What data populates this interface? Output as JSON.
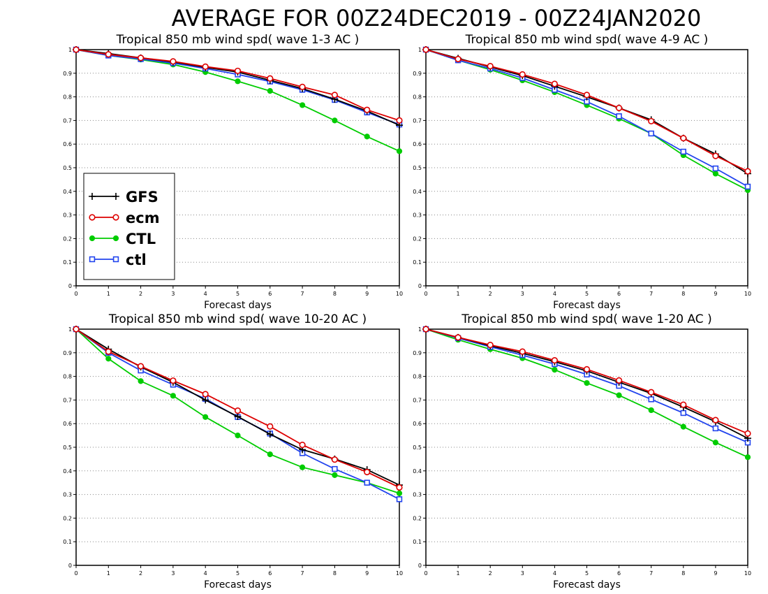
{
  "figure": {
    "title": "AVERAGE FOR 00Z24DEC2019 - 00Z24JAN2020"
  },
  "colors": {
    "GFS": "#000000",
    "ecm": "#dd0000",
    "CTL": "#00cc00",
    "ctl": "#2244ee",
    "grid": "#888888"
  },
  "legend": {
    "placement": "lower-left of first panel",
    "entries": [
      {
        "label": "GFS",
        "marker": "plus"
      },
      {
        "label": "ecm",
        "marker": "open-circle"
      },
      {
        "label": "CTL",
        "marker": "filled-circle"
      },
      {
        "label": "ctl",
        "marker": "open-square"
      }
    ]
  },
  "chart_data": [
    {
      "type": "line",
      "title": "Tropical 850 mb wind spd( wave 1-3 AC )",
      "xlabel": "Forecast days",
      "ylabel": "",
      "x": [
        0,
        1,
        2,
        3,
        4,
        5,
        6,
        7,
        8,
        9,
        10
      ],
      "xticks": [
        "0",
        "1",
        "2",
        "3",
        "4",
        "5",
        "6",
        "7",
        "8",
        "9",
        "10"
      ],
      "yticks": [
        "0",
        "0.1",
        "0.2",
        "0.3",
        "0.4",
        "0.5",
        "0.6",
        "0.7",
        "0.8",
        "0.9",
        "1"
      ],
      "xlim": [
        0,
        10
      ],
      "ylim": [
        0,
        1
      ],
      "grid": "horizontal dotted",
      "series": [
        {
          "name": "GFS",
          "values": [
            1.0,
            0.983,
            0.965,
            0.948,
            0.925,
            0.905,
            0.87,
            0.835,
            0.79,
            0.74,
            0.68
          ]
        },
        {
          "name": "ecm",
          "values": [
            1.0,
            0.98,
            0.965,
            0.95,
            0.928,
            0.91,
            0.878,
            0.842,
            0.808,
            0.745,
            0.7
          ]
        },
        {
          "name": "CTL",
          "values": [
            1.0,
            0.975,
            0.958,
            0.937,
            0.905,
            0.866,
            0.825,
            0.765,
            0.7,
            0.632,
            0.57
          ]
        },
        {
          "name": "ctl",
          "values": [
            1.0,
            0.975,
            0.96,
            0.943,
            0.92,
            0.895,
            0.865,
            0.83,
            0.787,
            0.734,
            0.683
          ]
        }
      ]
    },
    {
      "type": "line",
      "title": "Tropical 850 mb wind spd( wave 4-9 AC )",
      "xlabel": "Forecast days",
      "ylabel": "",
      "x": [
        0,
        1,
        2,
        3,
        4,
        5,
        6,
        7,
        8,
        9,
        10
      ],
      "xticks": [
        "0",
        "1",
        "2",
        "3",
        "4",
        "5",
        "6",
        "7",
        "8",
        "9",
        "10"
      ],
      "yticks": [
        "0",
        "0.1",
        "0.2",
        "0.3",
        "0.4",
        "0.5",
        "0.6",
        "0.7",
        "0.8",
        "0.9",
        "1"
      ],
      "xlim": [
        0,
        10
      ],
      "ylim": [
        0,
        1
      ],
      "grid": "horizontal dotted",
      "series": [
        {
          "name": "GFS",
          "values": [
            1.0,
            0.963,
            0.927,
            0.89,
            0.845,
            0.8,
            0.753,
            0.703,
            0.625,
            0.558,
            0.475
          ]
        },
        {
          "name": "ecm",
          "values": [
            1.0,
            0.96,
            0.93,
            0.895,
            0.855,
            0.808,
            0.753,
            0.697,
            0.625,
            0.55,
            0.485
          ]
        },
        {
          "name": "CTL",
          "values": [
            1.0,
            0.955,
            0.915,
            0.87,
            0.82,
            0.765,
            0.708,
            0.645,
            0.553,
            0.475,
            0.405
          ]
        },
        {
          "name": "ctl",
          "values": [
            1.0,
            0.955,
            0.92,
            0.88,
            0.83,
            0.78,
            0.718,
            0.645,
            0.568,
            0.497,
            0.42
          ]
        }
      ]
    },
    {
      "type": "line",
      "title": "Tropical 850 mb wind spd( wave 10-20 AC )",
      "xlabel": "Forecast days",
      "ylabel": "",
      "x": [
        0,
        1,
        2,
        3,
        4,
        5,
        6,
        7,
        8,
        9,
        10
      ],
      "xticks": [
        "0",
        "1",
        "2",
        "3",
        "4",
        "5",
        "6",
        "7",
        "8",
        "9",
        "10"
      ],
      "yticks": [
        "0",
        "0.1",
        "0.2",
        "0.3",
        "0.4",
        "0.5",
        "0.6",
        "0.7",
        "0.8",
        "0.9",
        "1"
      ],
      "xlim": [
        0,
        10
      ],
      "ylim": [
        0,
        1
      ],
      "grid": "horizontal dotted",
      "series": [
        {
          "name": "GFS",
          "values": [
            1.0,
            0.915,
            0.84,
            0.775,
            0.7,
            0.63,
            0.555,
            0.49,
            0.45,
            0.405,
            0.34
          ]
        },
        {
          "name": "ecm",
          "values": [
            1.0,
            0.905,
            0.843,
            0.782,
            0.725,
            0.655,
            0.588,
            0.51,
            0.448,
            0.395,
            0.33
          ]
        },
        {
          "name": "CTL",
          "values": [
            1.0,
            0.875,
            0.78,
            0.718,
            0.628,
            0.55,
            0.47,
            0.415,
            0.382,
            0.35,
            0.305
          ]
        },
        {
          "name": "ctl",
          "values": [
            1.0,
            0.9,
            0.825,
            0.765,
            0.705,
            0.628,
            0.558,
            0.475,
            0.408,
            0.35,
            0.28
          ]
        }
      ]
    },
    {
      "type": "line",
      "title": "Tropical 850 mb wind spd( wave 1-20 AC )",
      "xlabel": "Forecast days",
      "ylabel": "",
      "x": [
        0,
        1,
        2,
        3,
        4,
        5,
        6,
        7,
        8,
        9,
        10
      ],
      "xticks": [
        "0",
        "1",
        "2",
        "3",
        "4",
        "5",
        "6",
        "7",
        "8",
        "9",
        "10"
      ],
      "yticks": [
        "0",
        "0.1",
        "0.2",
        "0.3",
        "0.4",
        "0.5",
        "0.6",
        "0.7",
        "0.8",
        "0.9",
        "1"
      ],
      "xlim": [
        0,
        10
      ],
      "ylim": [
        0,
        1
      ],
      "grid": "horizontal dotted",
      "series": [
        {
          "name": "GFS",
          "values": [
            1.0,
            0.965,
            0.93,
            0.898,
            0.862,
            0.823,
            0.775,
            0.728,
            0.67,
            0.608,
            0.538
          ]
        },
        {
          "name": "ecm",
          "values": [
            1.0,
            0.965,
            0.933,
            0.905,
            0.868,
            0.83,
            0.783,
            0.733,
            0.68,
            0.615,
            0.558
          ]
        },
        {
          "name": "CTL",
          "values": [
            1.0,
            0.955,
            0.915,
            0.877,
            0.828,
            0.772,
            0.72,
            0.657,
            0.587,
            0.52,
            0.458
          ]
        },
        {
          "name": "ctl",
          "values": [
            1.0,
            0.962,
            0.925,
            0.89,
            0.852,
            0.808,
            0.76,
            0.703,
            0.645,
            0.58,
            0.52
          ]
        }
      ]
    }
  ]
}
